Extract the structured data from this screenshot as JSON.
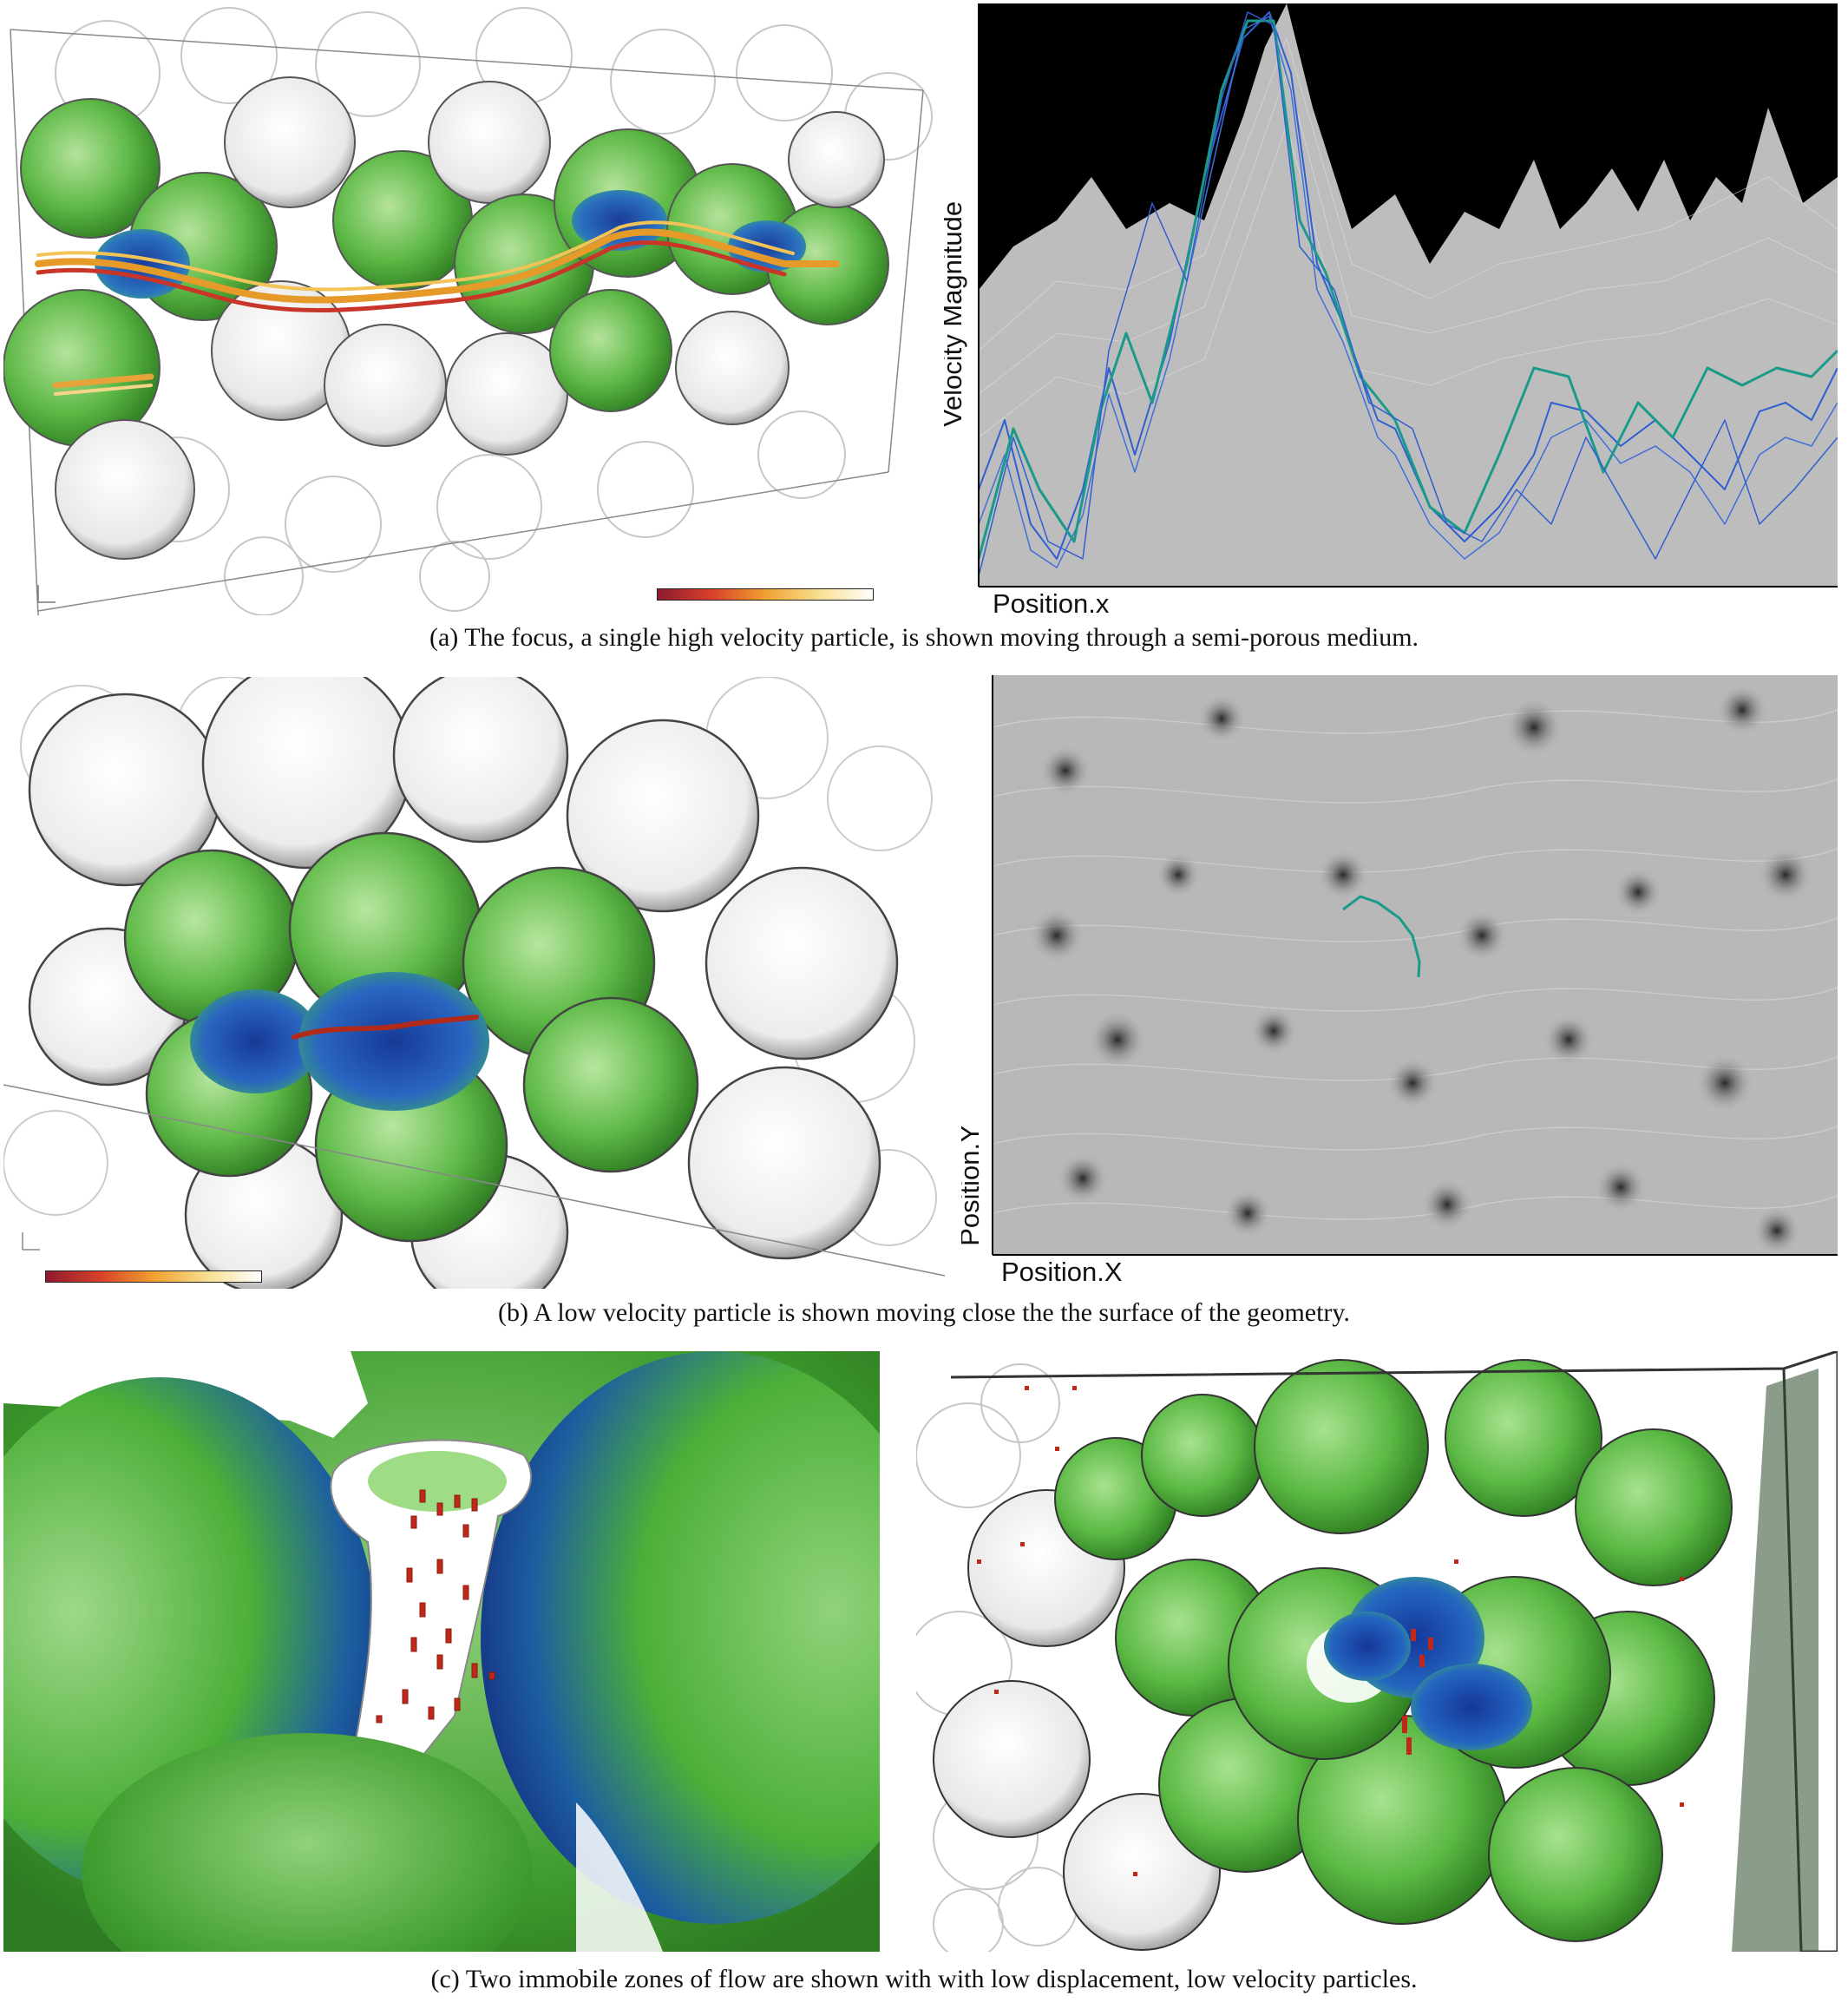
{
  "figure": {
    "panel_a": {
      "caption": "(a)  The focus, a single high velocity particle, is shown moving through a semi-porous medium.",
      "plot": {
        "xlabel": "Position.x",
        "ylabel": "Velocity Magnitude"
      }
    },
    "panel_b": {
      "caption": "(b)  A low velocity particle is shown moving close the the surface of the geometry.",
      "plot": {
        "xlabel": "Position.X",
        "ylabel": "Position.Y"
      }
    },
    "panel_c": {
      "caption": "(c)  Two immobile zones of flow are shown with with low displacement, low velocity particles."
    },
    "colors": {
      "medium_green": "#4caf38",
      "focus_blue": "#1e4fa0",
      "trace_teal": "#1a9a8a",
      "trace_blue": "#2f5fd0",
      "particle_red": "#b22a1a"
    }
  }
}
